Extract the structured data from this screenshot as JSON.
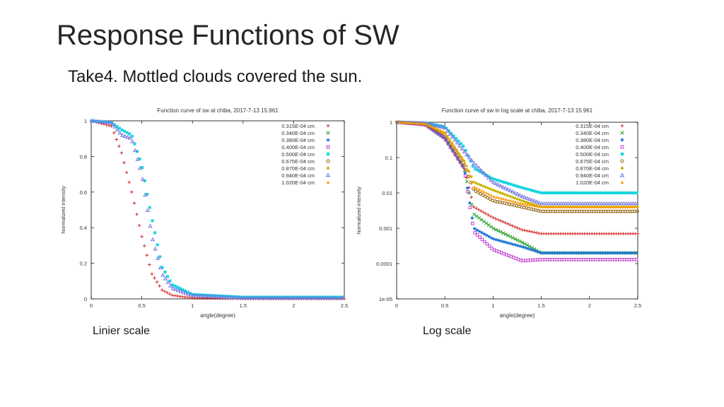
{
  "slide": {
    "title": "Response Functions of SW",
    "subtitle": "Take4. Mottled clouds covered the sun.",
    "caption_left": "Linier scale",
    "caption_right": "Log scale"
  },
  "legend_entries": [
    {
      "label": "0.315E-04 cm",
      "marker": "plus",
      "color": "#d62728"
    },
    {
      "label": "0.340E-04 cm",
      "marker": "x",
      "color": "#2ca02c"
    },
    {
      "label": "0.380E-04 cm",
      "marker": "star",
      "color": "#1f77d4"
    },
    {
      "label": "0.400E-04 cm",
      "marker": "square-open",
      "color": "#c040d0"
    },
    {
      "label": "0.500E-04 cm",
      "marker": "square-filled",
      "color": "#17d6e0"
    },
    {
      "label": "0.675E-04 cm",
      "marker": "circle-open",
      "color": "#8b5a00"
    },
    {
      "label": "0.870E-04 cm",
      "marker": "circle-filled",
      "color": "#c8b400"
    },
    {
      "label": "0.940E-04 cm",
      "marker": "triangle-open",
      "color": "#7070e0"
    },
    {
      "label": "1.020E-04 cm",
      "marker": "triangle-filled",
      "color": "#ff9900"
    }
  ],
  "chart_data": [
    {
      "type": "scatter",
      "title": "Function curve of sw at chiba, 2017-7-13 15.961",
      "xlabel": "angle(degree)",
      "ylabel": "Normalized intensity",
      "xlim": [
        0,
        2.5
      ],
      "ylim": [
        0,
        1
      ],
      "yscale": "linear",
      "xticks": [
        "0",
        "0.5",
        "1",
        "1.5",
        "2",
        "2.5"
      ],
      "yticks": [
        "0",
        "0.2",
        "0.4",
        "0.6",
        "0.8",
        "1"
      ],
      "legend_position": "top-right",
      "series": [
        {
          "name": "0.315E-04 cm",
          "x": [
            0.0,
            0.2,
            0.3,
            0.4,
            0.5,
            0.6,
            0.7,
            0.8,
            1.0,
            1.5,
            2.5
          ],
          "y": [
            1.0,
            0.97,
            0.82,
            0.6,
            0.35,
            0.14,
            0.05,
            0.02,
            0.005,
            0.001,
            0.001
          ]
        },
        {
          "name": "0.500E-04 cm",
          "x": [
            0.0,
            0.2,
            0.3,
            0.4,
            0.5,
            0.6,
            0.7,
            0.8,
            1.0,
            1.5,
            2.5
          ],
          "y": [
            1.0,
            0.99,
            0.95,
            0.92,
            0.75,
            0.45,
            0.18,
            0.08,
            0.025,
            0.01,
            0.01
          ]
        },
        {
          "name": "0.940E-04 cm",
          "x": [
            0.0,
            0.2,
            0.3,
            0.4,
            0.5,
            0.6,
            0.7,
            0.8,
            1.0,
            1.5,
            2.5
          ],
          "y": [
            1.0,
            0.99,
            0.92,
            0.9,
            0.7,
            0.35,
            0.14,
            0.06,
            0.02,
            0.005,
            0.005
          ]
        }
      ]
    },
    {
      "type": "scatter",
      "title": "Function curve of sw in log scale at chiba, 2017-7-13 15.961",
      "xlabel": "angle(degree)",
      "ylabel": "Normalized intensity",
      "xlim": [
        0,
        2.5
      ],
      "ylim": [
        1e-05,
        1
      ],
      "yscale": "log",
      "xticks": [
        "0",
        "0.5",
        "1",
        "1.5",
        "2",
        "2.5"
      ],
      "yticks": [
        "1e-05",
        "0.0001",
        "0.001",
        "0.01",
        "0.1",
        "1"
      ],
      "legend_position": "top-right",
      "series": [
        {
          "name": "0.315E-04 cm",
          "x": [
            0.0,
            0.3,
            0.5,
            0.7,
            0.8,
            1.0,
            1.3,
            1.5,
            2.5
          ],
          "y": [
            1.0,
            0.85,
            0.35,
            0.05,
            0.004,
            0.002,
            0.0009,
            0.0007,
            0.0007
          ]
        },
        {
          "name": "0.340E-04 cm",
          "x": [
            0.0,
            0.3,
            0.5,
            0.7,
            0.8,
            1.0,
            1.3,
            1.5,
            2.5
          ],
          "y": [
            1.0,
            0.85,
            0.35,
            0.05,
            0.0025,
            0.001,
            0.0004,
            0.0002,
            0.0002
          ]
        },
        {
          "name": "0.380E-04 cm",
          "x": [
            0.0,
            0.3,
            0.5,
            0.7,
            0.8,
            1.0,
            1.3,
            1.5,
            2.5
          ],
          "y": [
            1.0,
            0.85,
            0.35,
            0.05,
            0.001,
            0.0005,
            0.0003,
            0.0002,
            0.0002
          ]
        },
        {
          "name": "0.400E-04 cm",
          "x": [
            0.0,
            0.3,
            0.5,
            0.7,
            0.8,
            1.0,
            1.3,
            1.5,
            2.5
          ],
          "y": [
            1.0,
            0.85,
            0.35,
            0.05,
            0.0008,
            0.00025,
            0.00012,
            0.00013,
            0.00013
          ]
        },
        {
          "name": "0.500E-04 cm",
          "x": [
            0.0,
            0.3,
            0.5,
            0.7,
            0.8,
            1.0,
            1.3,
            1.5,
            2.5
          ],
          "y": [
            1.0,
            0.95,
            0.75,
            0.2,
            0.05,
            0.025,
            0.014,
            0.01,
            0.01
          ]
        },
        {
          "name": "0.675E-04 cm",
          "x": [
            0.0,
            0.3,
            0.5,
            0.7,
            0.8,
            1.0,
            1.3,
            1.5,
            2.5
          ],
          "y": [
            1.0,
            0.9,
            0.45,
            0.06,
            0.012,
            0.006,
            0.004,
            0.003,
            0.003
          ]
        },
        {
          "name": "0.870E-04 cm",
          "x": [
            0.0,
            0.3,
            0.5,
            0.7,
            0.8,
            1.0,
            1.3,
            1.5,
            2.5
          ],
          "y": [
            1.0,
            0.9,
            0.5,
            0.08,
            0.02,
            0.012,
            0.006,
            0.004,
            0.004
          ]
        },
        {
          "name": "0.940E-04 cm",
          "x": [
            0.0,
            0.3,
            0.5,
            0.7,
            0.8,
            1.0,
            1.3,
            1.5,
            2.5
          ],
          "y": [
            1.0,
            0.95,
            0.7,
            0.15,
            0.07,
            0.02,
            0.008,
            0.005,
            0.005
          ]
        },
        {
          "name": "1.020E-04 cm",
          "x": [
            0.0,
            0.3,
            0.5,
            0.7,
            0.8,
            1.0,
            1.3,
            1.5,
            2.5
          ],
          "y": [
            1.0,
            0.9,
            0.5,
            0.08,
            0.015,
            0.008,
            0.005,
            0.004,
            0.004
          ]
        }
      ]
    }
  ]
}
